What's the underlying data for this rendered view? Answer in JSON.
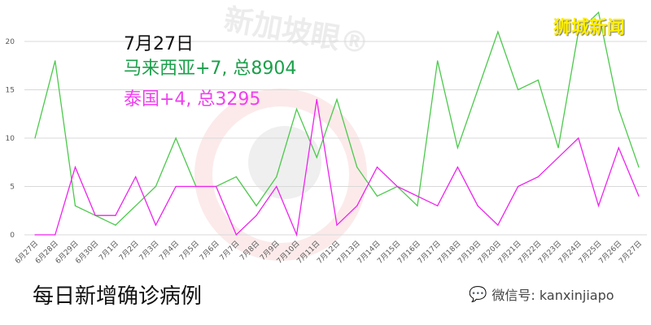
{
  "chart_data": {
    "type": "line",
    "categories": [
      "6月27日",
      "6月28日",
      "6月29日",
      "6月30日",
      "7月1日",
      "7月2日",
      "7月3日",
      "7月4日",
      "7月5日",
      "7月6日",
      "7月7日",
      "7月8日",
      "7月9日",
      "7月10日",
      "7月11日",
      "7月12日",
      "7月13日",
      "7月14日",
      "7月15日",
      "7月16日",
      "7月17日",
      "7月18日",
      "7月19日",
      "7月20日",
      "7月21日",
      "7月22日",
      "7月23日",
      "7月24日",
      "7月25日",
      "7月26日",
      "7月27日"
    ],
    "series": [
      {
        "color": "#4cc94c",
        "values": [
          10,
          18,
          3,
          2,
          1,
          3,
          5,
          10,
          5,
          5,
          6,
          3,
          6,
          13,
          8,
          14,
          7,
          4,
          5,
          3,
          18,
          9,
          15,
          21,
          15,
          16,
          9,
          21,
          23,
          13,
          7
        ]
      },
      {
        "color": "#ee22ee",
        "values": [
          0,
          0,
          7,
          2,
          2,
          6,
          1,
          5,
          5,
          5,
          0,
          2,
          5,
          0,
          14,
          1,
          3,
          7,
          5,
          4,
          3,
          7,
          3,
          1,
          5,
          6,
          8,
          10,
          3,
          9,
          4
        ]
      }
    ],
    "yticks": [
      0,
      5,
      10,
      15,
      20
    ],
    "ylim": [
      0,
      23
    ],
    "grid": true
  },
  "annotation": {
    "date": "7月27日",
    "malaysia": "马来西亚+7, 总8904",
    "thailand": "泰国+4, 总3295"
  },
  "brand": "狮城新闻",
  "watermark": "新加坡眼®",
  "caption": "每日新增确诊病例",
  "wechat": "微信号: kanxinjiapo"
}
